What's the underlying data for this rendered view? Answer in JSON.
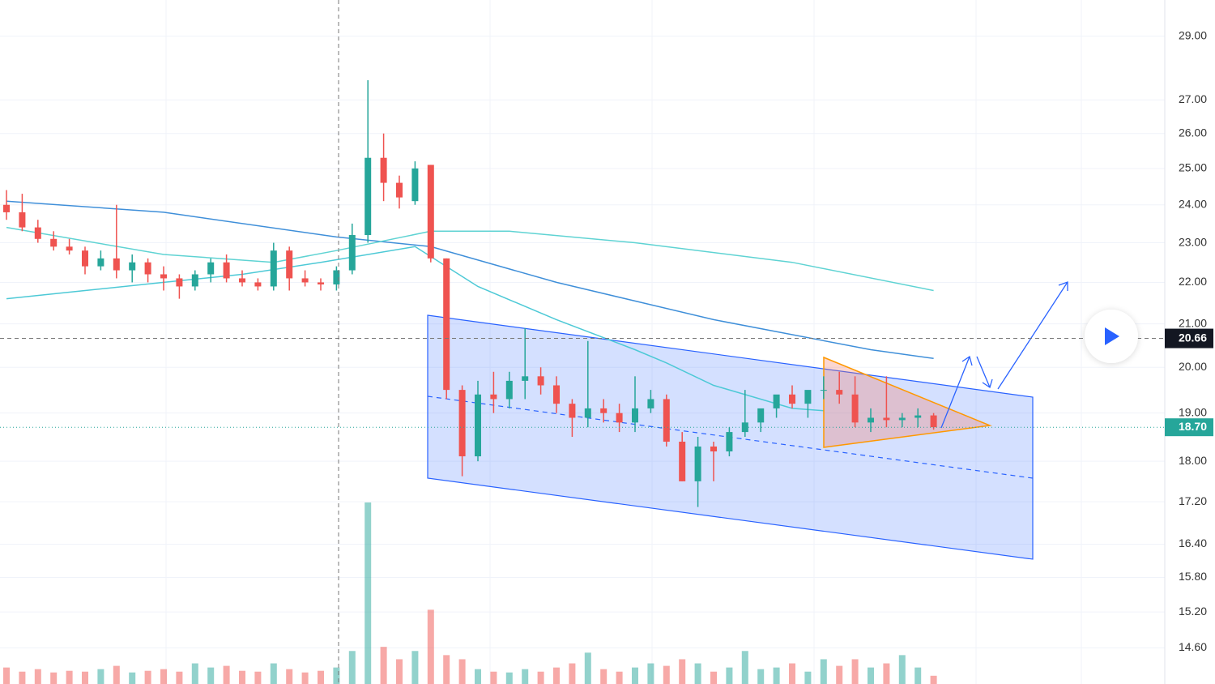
{
  "chart_data": {
    "type": "candlestick",
    "log_scale": true,
    "ylim": [
      14.02,
      30.2
    ],
    "yticks": [
      {
        "value": 29,
        "label": "29.00"
      },
      {
        "value": 27,
        "label": "27.00"
      },
      {
        "value": 26,
        "label": "26.00"
      },
      {
        "value": 25,
        "label": "25.00"
      },
      {
        "value": 24,
        "label": "24.00"
      },
      {
        "value": 23,
        "label": "23.00"
      },
      {
        "value": 22,
        "label": "22.00"
      },
      {
        "value": 21,
        "label": "21.00"
      },
      {
        "value": 20,
        "label": "20.00"
      },
      {
        "value": 19,
        "label": "19.00"
      },
      {
        "value": 18,
        "label": "18.00"
      },
      {
        "value": 17.2,
        "label": "17.20"
      },
      {
        "value": 16.4,
        "label": "16.40"
      },
      {
        "value": 15.8,
        "label": "15.80"
      },
      {
        "value": 15.2,
        "label": "15.20"
      },
      {
        "value": 14.6,
        "label": "14.60"
      }
    ],
    "grid": true,
    "up_color": "#26a69a",
    "down_color": "#ef5350",
    "open": [
      24.0,
      23.8,
      23.4,
      23.1,
      22.9,
      22.8,
      22.4,
      22.6,
      22.3,
      22.5,
      22.2,
      22.1,
      21.9,
      22.2,
      22.5,
      22.1,
      22.0,
      21.9,
      22.8,
      22.1,
      22.0,
      21.95,
      22.3,
      23.2,
      25.3,
      24.6,
      24.1,
      25.1,
      22.6,
      19.5,
      18.1,
      19.4,
      19.3,
      19.7,
      19.8,
      19.6,
      19.2,
      18.9,
      19.1,
      19.0,
      18.8,
      19.1,
      19.3,
      18.4,
      17.6,
      18.3,
      18.2,
      18.6,
      18.8,
      19.1,
      19.4,
      19.2,
      19.5,
      19.5,
      19.4,
      18.8,
      18.9,
      18.85,
      18.9,
      18.95
    ],
    "high": [
      24.4,
      24.3,
      23.6,
      23.3,
      23.1,
      22.9,
      22.8,
      24.0,
      22.7,
      22.6,
      22.4,
      22.2,
      22.3,
      22.6,
      22.7,
      22.3,
      22.1,
      23.0,
      22.9,
      22.3,
      22.1,
      22.4,
      23.5,
      27.6,
      26.0,
      24.8,
      25.2,
      25.1,
      22.6,
      19.6,
      19.7,
      19.9,
      19.9,
      20.9,
      20.0,
      19.8,
      19.3,
      20.6,
      19.3,
      19.2,
      19.8,
      19.5,
      19.4,
      18.6,
      18.5,
      18.4,
      18.7,
      19.5,
      19.0,
      19.3,
      19.6,
      19.4,
      19.8,
      19.9,
      19.8,
      19.1,
      19.8,
      19.0,
      19.1,
      19.0
    ],
    "low": [
      23.6,
      23.3,
      23.0,
      22.8,
      22.7,
      22.2,
      22.3,
      22.1,
      22.0,
      22.0,
      21.8,
      21.6,
      21.8,
      22.0,
      22.0,
      21.9,
      21.8,
      21.8,
      21.8,
      21.9,
      21.8,
      21.8,
      22.2,
      23.0,
      24.1,
      23.9,
      24.0,
      22.5,
      19.3,
      17.7,
      18.0,
      19.0,
      19.1,
      19.3,
      19.4,
      19.0,
      18.5,
      18.7,
      18.8,
      18.6,
      18.6,
      19.0,
      18.3,
      17.6,
      17.1,
      17.6,
      18.1,
      18.5,
      18.6,
      18.9,
      19.1,
      18.9,
      19.3,
      19.2,
      18.7,
      18.6,
      18.7,
      18.7,
      18.7,
      18.65
    ],
    "close": [
      23.8,
      23.4,
      23.1,
      22.9,
      22.8,
      22.4,
      22.6,
      22.3,
      22.5,
      22.2,
      22.1,
      21.9,
      22.2,
      22.5,
      22.1,
      22.0,
      21.9,
      22.8,
      22.1,
      22.0,
      21.95,
      22.3,
      23.2,
      25.3,
      24.6,
      24.2,
      25.0,
      22.6,
      19.5,
      18.1,
      19.4,
      19.3,
      19.7,
      19.8,
      19.6,
      19.2,
      18.9,
      19.1,
      19.0,
      18.8,
      19.1,
      19.3,
      18.4,
      17.6,
      18.3,
      18.2,
      18.6,
      18.8,
      19.1,
      19.4,
      19.2,
      19.5,
      19.5,
      19.4,
      18.8,
      18.9,
      18.85,
      18.9,
      18.95,
      18.7
    ],
    "volume": [
      20,
      15,
      18,
      14,
      16,
      15,
      18,
      22,
      14,
      16,
      18,
      15,
      25,
      20,
      22,
      16,
      15,
      25,
      18,
      14,
      16,
      20,
      40,
      220,
      45,
      30,
      40,
      90,
      35,
      30,
      18,
      15,
      14,
      18,
      15,
      20,
      25,
      38,
      18,
      15,
      20,
      25,
      22,
      30,
      25,
      15,
      20,
      40,
      18,
      20,
      25,
      15,
      30,
      22,
      30,
      20,
      25,
      35,
      20,
      10
    ],
    "series": [
      {
        "color": "#4dc9d6",
        "x": [
          0,
          5,
          10,
          15,
          20,
          26,
          30,
          35,
          40,
          42,
          45,
          50,
          52
        ],
        "values": [
          21.6,
          21.8,
          22.0,
          22.2,
          22.5,
          22.9,
          21.9,
          21.1,
          20.4,
          20.1,
          19.6,
          19.1,
          19.05
        ]
      },
      {
        "color": "#3f8fd9",
        "x": [
          0,
          10,
          21,
          27,
          35,
          45,
          55,
          59
        ],
        "values": [
          24.1,
          23.8,
          23.15,
          22.9,
          22.0,
          21.1,
          20.4,
          20.2
        ]
      },
      {
        "color": "#5fd3d3",
        "x": [
          0,
          10,
          17,
          21,
          27,
          32,
          40,
          50,
          59
        ],
        "values": [
          23.4,
          22.7,
          22.5,
          22.8,
          23.3,
          23.3,
          23.0,
          22.5,
          21.8
        ]
      }
    ],
    "crosshair_price": 20.66,
    "last_price": {
      "value": 18.7,
      "label": "18.70"
    }
  }
}
